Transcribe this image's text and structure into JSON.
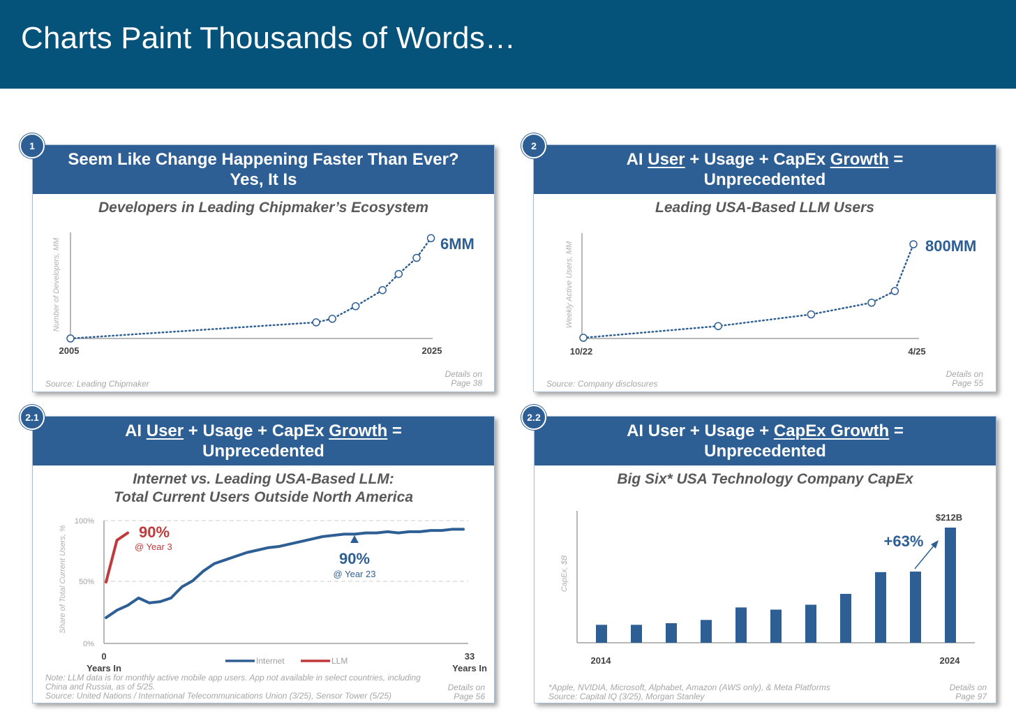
{
  "page_title": "Charts Paint Thousands of Words…",
  "colors": {
    "header_bar": "#05527A",
    "panel_header": "#2E5F94",
    "series_blue": "#2E5F94",
    "series_red": "#C0393B"
  },
  "panels": [
    {
      "badge": "1",
      "header_line1": "Seem Like Change Happening Faster Than Ever?",
      "header_line2": "Yes, It Is",
      "subtitle": "Developers in Leading Chipmaker’s Ecosystem",
      "source": "Source: Leading Chipmaker",
      "details_line1": "Details on",
      "details_line2": "Page 38"
    },
    {
      "badge": "2",
      "header_line1_parts": [
        "AI ",
        "User",
        " + Usage + CapEx ",
        "Growth",
        " ="
      ],
      "header_line2": "Unprecedented",
      "subtitle": "Leading USA-Based LLM Users",
      "source": "Source: Company disclosures",
      "details_line1": "Details on",
      "details_line2": "Page 55"
    },
    {
      "badge": "2.1",
      "header_line1_parts": [
        "AI ",
        "User",
        " + Usage + CapEx ",
        "Growth",
        " ="
      ],
      "header_line2": "Unprecedented",
      "subtitle_line1": "Internet vs. Leading USA-Based LLM:",
      "subtitle_line2": "Total Current Users Outside North America",
      "note_line1": "Note: LLM data is for monthly active mobile app users. App not available in select countries, including",
      "note_line2": "China and Russia, as of 5/25.",
      "source": "Source: United Nations / International Telecommunications Union (3/25), Sensor Tower (5/25)",
      "details_line1": "Details on",
      "details_line2": "Page 56"
    },
    {
      "badge": "2.2",
      "header_line1_parts": [
        "AI User + Usage + ",
        "CapEx Growth",
        " ="
      ],
      "header_line2": "Unprecedented",
      "subtitle": "Big Six* USA Technology Company CapEx",
      "note": "*Apple, NVIDIA, Microsoft, Alphabet, Amazon (AWS only), & Meta Platforms",
      "source": "Source: Capital IQ (3/25), Morgan Stanley",
      "details_line1": "Details on",
      "details_line2": "Page 97"
    }
  ],
  "chart_data": [
    {
      "type": "line",
      "ylabel": "Number of Developers, MM",
      "x_tick_labels": [
        "2005",
        "2025"
      ],
      "x": [
        2005,
        2018.7,
        2019.6,
        2020.9,
        2022.4,
        2023.3,
        2024.3,
        2025.1
      ],
      "values": [
        0,
        0.9,
        1.1,
        1.8,
        2.7,
        3.6,
        4.5,
        5.6
      ],
      "annotation": "6MM"
    },
    {
      "type": "line",
      "ylabel": "Weekly Active Users, MM",
      "x_tick_labels": [
        "10/22",
        "4/25"
      ],
      "x": [
        0,
        14.5,
        24.5,
        31,
        33.5,
        35.5
      ],
      "values": [
        0,
        100,
        200,
        300,
        400,
        800
      ],
      "annotation": "800MM"
    },
    {
      "type": "line",
      "ylabel": "Share of Total Current Users, %",
      "y_tick_labels": [
        "100%",
        "50%",
        "0%"
      ],
      "ylim": [
        0,
        100
      ],
      "x_tick_labels": [
        "0",
        "33"
      ],
      "x_axis_caption": "Years In",
      "series": [
        {
          "name": "Internet",
          "x": [
            0,
            1,
            2,
            3,
            4,
            5,
            6,
            7,
            8,
            9,
            10,
            11,
            12,
            13,
            14,
            15,
            16,
            17,
            18,
            19,
            20,
            21,
            22,
            23,
            24,
            25,
            26,
            27,
            28,
            29,
            30,
            31,
            32,
            33
          ],
          "values": [
            21,
            27,
            31,
            37,
            33,
            34,
            37,
            46,
            51,
            59,
            65,
            68,
            71,
            74,
            76,
            78,
            79,
            81,
            83,
            85,
            87,
            88,
            89,
            89,
            90,
            90,
            91,
            90,
            91,
            91,
            92,
            92,
            93,
            93
          ]
        },
        {
          "name": "LLM",
          "x": [
            0,
            1,
            2
          ],
          "values": [
            50,
            84,
            90
          ]
        }
      ],
      "annotations": [
        {
          "value": "90%",
          "caption": "@ Year 3",
          "series": "LLM"
        },
        {
          "value": "90%",
          "caption": "@ Year 23",
          "series": "Internet"
        }
      ]
    },
    {
      "type": "bar",
      "ylabel": "CapEx, $B",
      "categories": [
        "2014",
        "2015",
        "2016",
        "2017",
        "2018",
        "2019",
        "2020",
        "2021",
        "2022",
        "2023",
        "2024"
      ],
      "x_tick_labels": [
        "2014",
        "2024"
      ],
      "values": [
        33,
        33,
        36,
        42,
        65,
        61,
        70,
        90,
        130,
        131,
        212
      ],
      "annotations": [
        {
          "value": "$212B",
          "category": "2024"
        },
        {
          "value": "+63%"
        }
      ]
    }
  ]
}
